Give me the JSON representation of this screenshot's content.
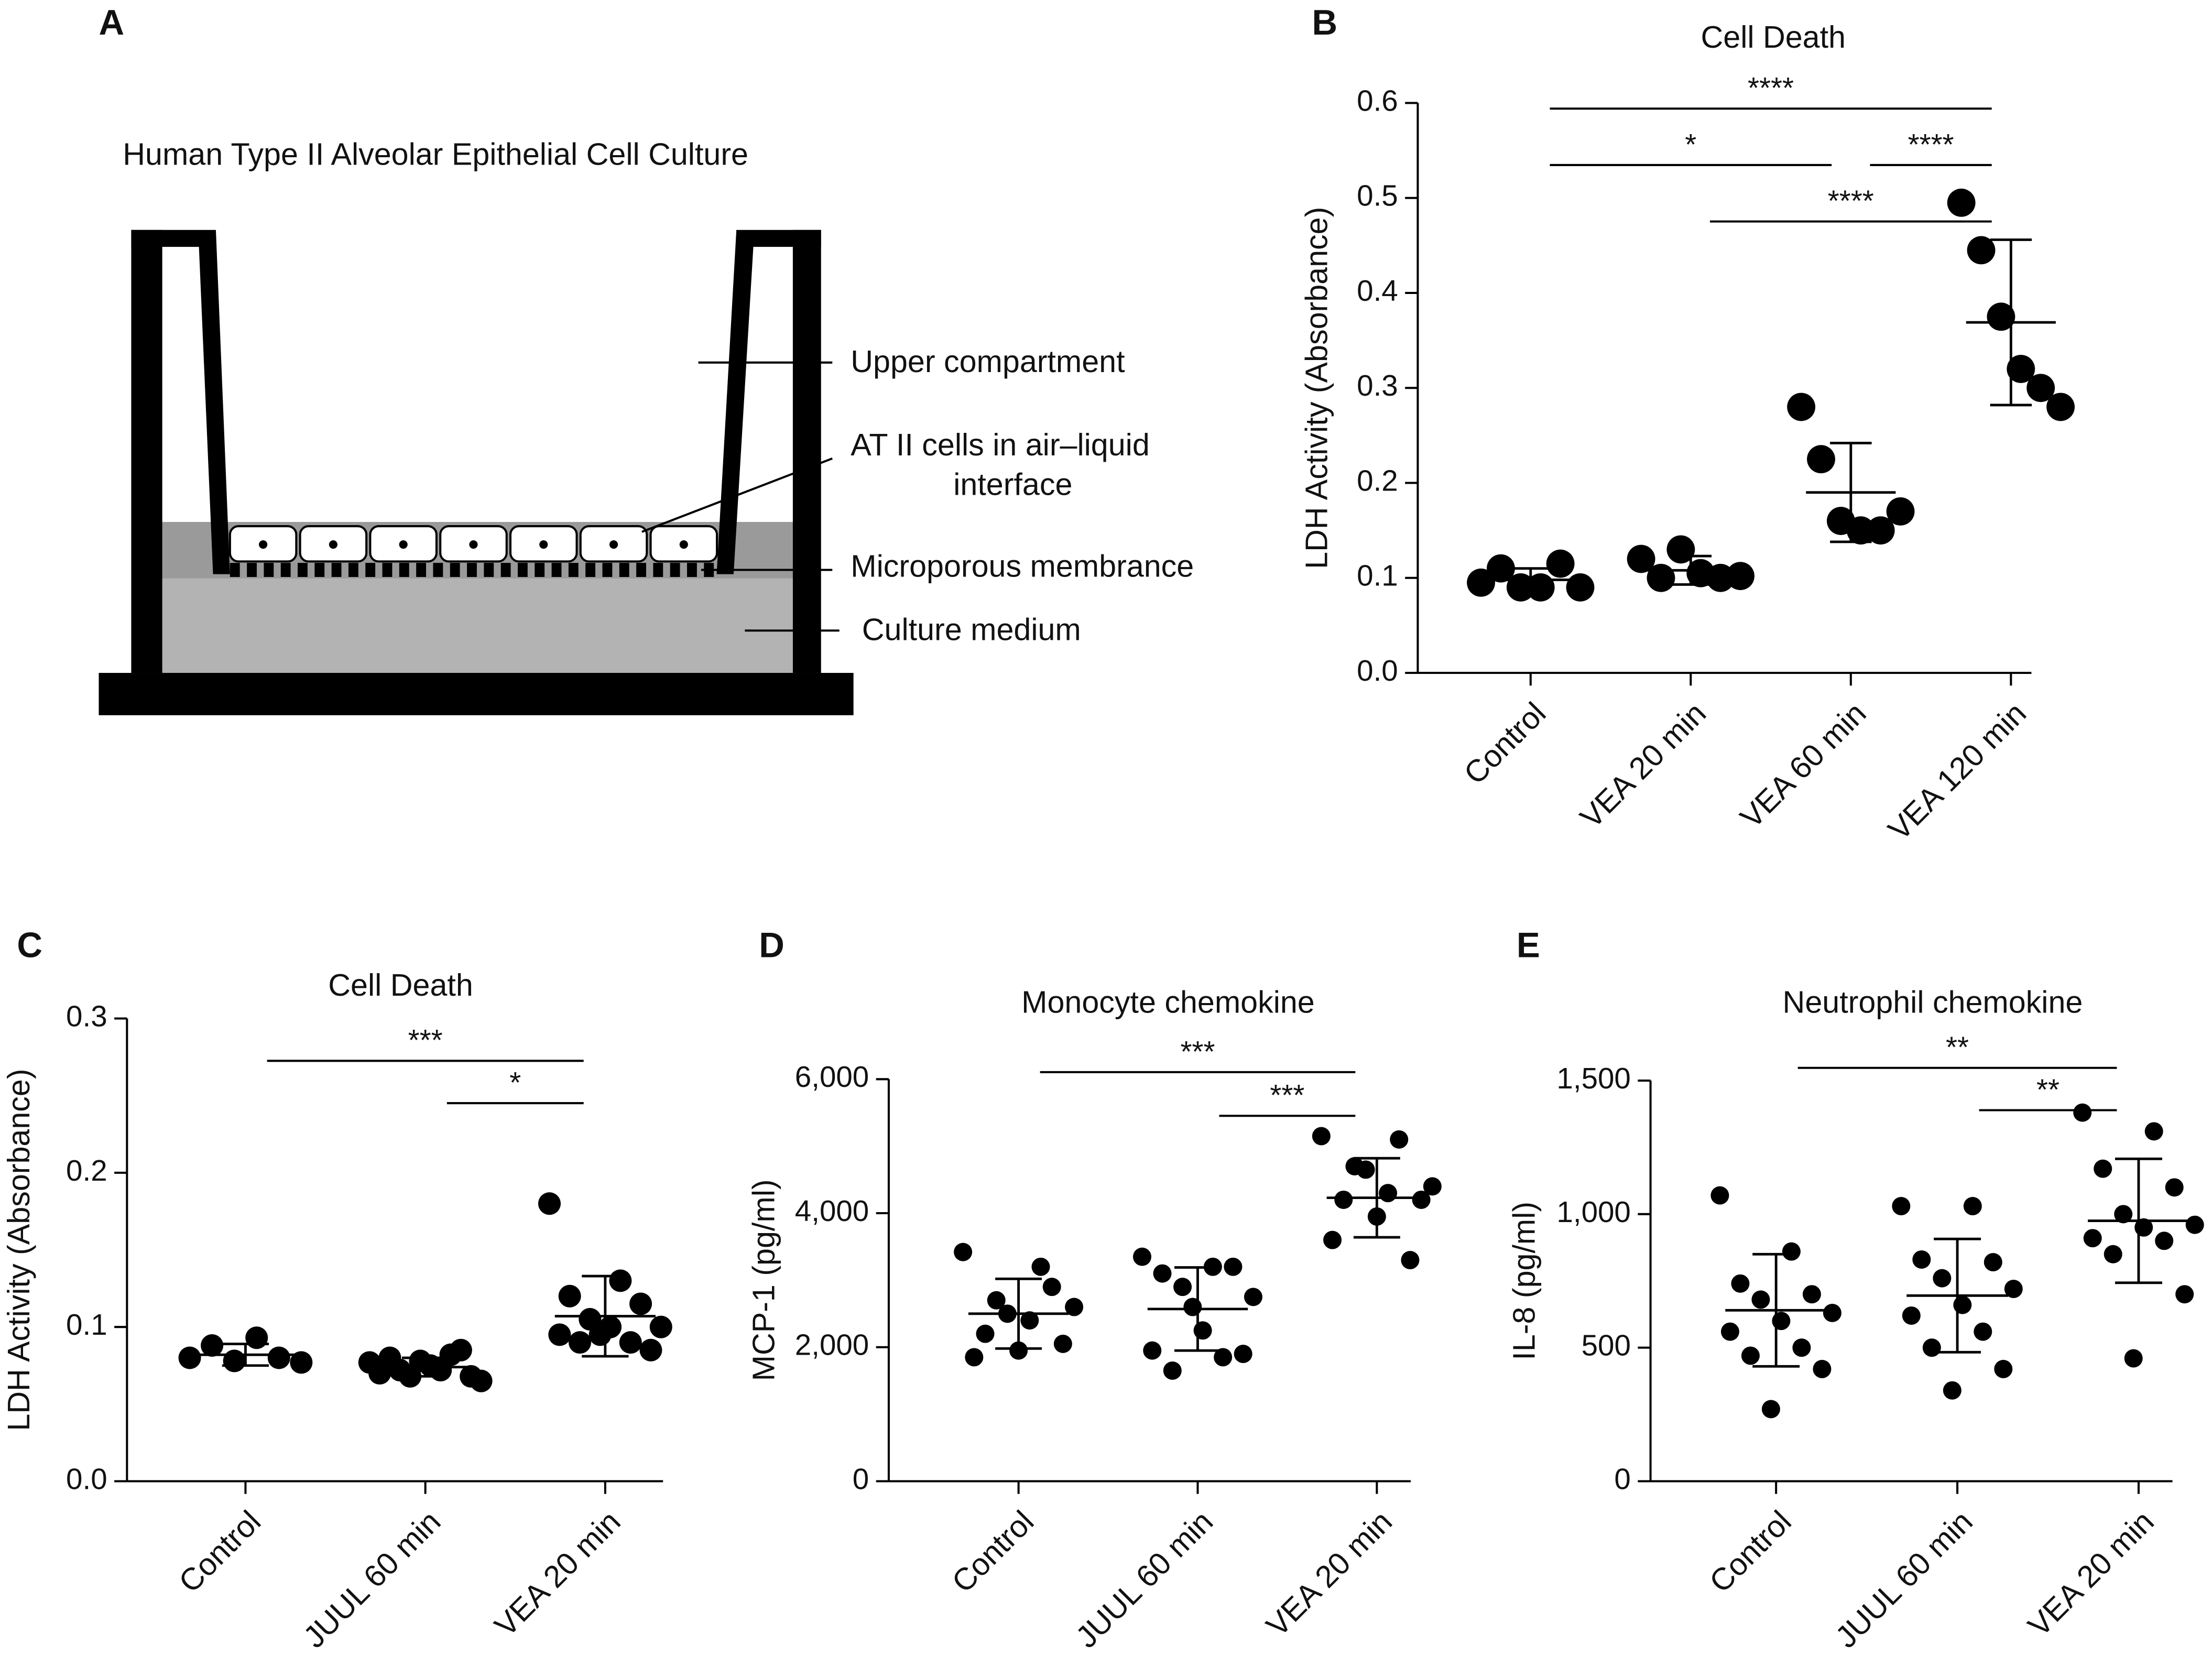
{
  "diagram": {
    "panel": "A",
    "title": "Human Type II Alveolar Epithelial Cell Culture",
    "labels": [
      [
        "Upper compartment"
      ],
      [
        "AT II cells in air–liquid",
        "interface"
      ],
      [
        "Microporous membrance"
      ],
      [
        "Culture medium"
      ]
    ]
  },
  "chart_data": [
    {
      "type": "dotplot",
      "panel": "B",
      "title": "Cell Death",
      "y_label": "LDH Activity (Absorbance)",
      "categories": [
        "Control",
        "VEA 20 min",
        "VEA 60 min",
        "VEA 120 min"
      ],
      "values": [
        [
          0.095,
          0.11,
          0.09,
          0.09,
          0.115,
          0.09
        ],
        [
          0.12,
          0.1,
          0.13,
          0.105,
          0.1,
          0.102
        ],
        [
          0.28,
          0.225,
          0.16,
          0.15,
          0.15,
          0.17
        ],
        [
          0.495,
          0.445,
          0.375,
          0.32,
          0.3,
          0.28
        ]
      ],
      "means": [
        0.098,
        0.108,
        0.19,
        0.369
      ],
      "sds": [
        0.012,
        0.015,
        0.052,
        0.087
      ],
      "ylim": [
        0,
        0.6
      ],
      "yticks": [
        {
          "value": 0,
          "label": "0.0"
        },
        0.1,
        0.2,
        0.3,
        0.4,
        0.5,
        0.6
      ],
      "color": "#000000",
      "significance": [
        {
          "between": [
            "Control",
            "VEA 120 min"
          ],
          "label": "****"
        },
        {
          "between": [
            "Control",
            "VEA 60 min"
          ],
          "label": "*"
        },
        {
          "between": [
            "VEA 60 min",
            "VEA 120 min"
          ],
          "label": "****"
        },
        {
          "between": [
            "VEA 20 min",
            "VEA 120 min"
          ],
          "label": "****"
        }
      ]
    },
    {
      "type": "dotplot",
      "panel": "C",
      "title": "Cell Death",
      "y_label": "LDH Activity (Absorbance)",
      "categories": [
        "Control",
        "JUUL 60 min",
        "VEA 20 min"
      ],
      "values": [
        [
          0.08,
          0.088,
          0.078,
          0.093,
          0.08,
          0.077
        ],
        [
          0.077,
          0.072,
          0.08,
          0.085,
          0.068,
          0.065,
          0.075,
          0.07,
          0.082,
          0.072,
          0.068,
          0.078
        ],
        [
          0.18,
          0.13,
          0.12,
          0.115,
          0.105,
          0.1,
          0.1,
          0.095,
          0.09,
          0.09,
          0.085,
          0.095
        ]
      ],
      "means": [
        0.082,
        0.074,
        0.107
      ],
      "sds": [
        0.007,
        0.006,
        0.026
      ],
      "ylim": [
        0,
        0.3
      ],
      "yticks": [
        {
          "value": 0,
          "label": "0.0"
        },
        0.1,
        0.2,
        0.3
      ],
      "color": "#000000",
      "significance": [
        {
          "between": [
            "Control",
            "VEA 20 min"
          ],
          "label": "***"
        },
        {
          "between": [
            "JUUL 60 min",
            "VEA 20 min"
          ],
          "label": "*"
        }
      ]
    },
    {
      "type": "dotplot",
      "panel": "D",
      "title": "Monocyte chemokine",
      "y_label": "MCP-1 (pg/ml)",
      "categories": [
        "Control",
        "JUUL 60 min",
        "VEA 20 min"
      ],
      "values": [
        [
          3420,
          3200,
          2700,
          2600,
          2400,
          2200,
          2050,
          1950,
          1850,
          2900,
          2500
        ],
        [
          3350,
          3200,
          3100,
          3200,
          2900,
          2750,
          2250,
          1950,
          1850,
          1650,
          1900,
          2600
        ],
        [
          5150,
          5100,
          4700,
          4400,
          4300,
          4200,
          4200,
          3950,
          3600,
          3300,
          4650
        ]
      ],
      "means": [
        2500,
        2570,
        4230
      ],
      "sds": [
        520,
        620,
        590
      ],
      "ylim": [
        0,
        6000
      ],
      "yticks": [
        0,
        {
          "value": 2000,
          "label": "2,000"
        },
        {
          "value": 4000,
          "label": "4,000"
        },
        {
          "value": 6000,
          "label": "6,000"
        }
      ],
      "color": "#000000",
      "significance": [
        {
          "between": [
            "Control",
            "VEA 20 min"
          ],
          "label": "***"
        },
        {
          "between": [
            "JUUL 60 min",
            "VEA 20 min"
          ],
          "label": "***"
        }
      ]
    },
    {
      "type": "dotplot",
      "panel": "E",
      "title": "Neutrophil chemokine",
      "y_label": "IL-8 (pg/ml)",
      "categories": [
        "Control",
        "JUUL 60 min",
        "VEA 20 min"
      ],
      "values": [
        [
          1070,
          860,
          740,
          700,
          680,
          630,
          600,
          560,
          500,
          470,
          420,
          270
        ],
        [
          1030,
          1030,
          830,
          820,
          760,
          720,
          660,
          620,
          560,
          500,
          420,
          340
        ],
        [
          1380,
          1310,
          1170,
          1100,
          1000,
          960,
          950,
          910,
          900,
          850,
          700,
          460
        ]
      ],
      "means": [
        640,
        695,
        975
      ],
      "sds": [
        210,
        212,
        232
      ],
      "ylim": [
        0,
        1500
      ],
      "yticks": [
        0,
        500,
        {
          "value": 1000,
          "label": "1,000"
        },
        {
          "value": 1500,
          "label": "1,500"
        }
      ],
      "color": "#000000",
      "significance": [
        {
          "between": [
            "Control",
            "VEA 20 min"
          ],
          "label": "**"
        },
        {
          "between": [
            "JUUL 60 min",
            "VEA 20 min"
          ],
          "label": "**"
        }
      ]
    }
  ]
}
